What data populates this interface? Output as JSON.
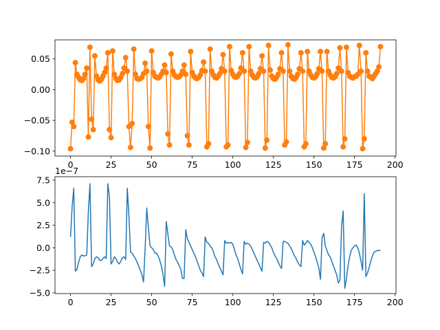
{
  "chart_data": [
    {
      "type": "line",
      "markers": true,
      "x": [
        0,
        1,
        2,
        3,
        4,
        5,
        6,
        7,
        8,
        9,
        10,
        11,
        12,
        13,
        14,
        15,
        16,
        17,
        18,
        19,
        20,
        21,
        22,
        23,
        24,
        25,
        26,
        27,
        28,
        29,
        30,
        31,
        32,
        33,
        34,
        35,
        36,
        37,
        38,
        39,
        40,
        41,
        42,
        43,
        44,
        45,
        46,
        47,
        48,
        49,
        50,
        51,
        52,
        53,
        54,
        55,
        56,
        57,
        58,
        59,
        60,
        61,
        62,
        63,
        64,
        65,
        66,
        67,
        68,
        69,
        70,
        71,
        72,
        73,
        74,
        75,
        76,
        77,
        78,
        79,
        80,
        81,
        82,
        83,
        84,
        85,
        86,
        87,
        88,
        89,
        90,
        91,
        92,
        93,
        94,
        95,
        96,
        97,
        98,
        99,
        100,
        101,
        102,
        103,
        104,
        105,
        106,
        107,
        108,
        109,
        110,
        111,
        112,
        113,
        114,
        115,
        116,
        117,
        118,
        119,
        120,
        121,
        122,
        123,
        124,
        125,
        126,
        127,
        128,
        129,
        130,
        131,
        132,
        133,
        134,
        135,
        136,
        137,
        138,
        139,
        140,
        141,
        142,
        143,
        144,
        145,
        146,
        147,
        148,
        149,
        150,
        151,
        152,
        153,
        154,
        155,
        156,
        157,
        158,
        159,
        160,
        161,
        162,
        163,
        164,
        165,
        166,
        167,
        168,
        169,
        170,
        171,
        172,
        173,
        174,
        175,
        176,
        177,
        178,
        179,
        180,
        181,
        182,
        183,
        184,
        185,
        186,
        187,
        188,
        189,
        190,
        191
      ],
      "series": [
        {
          "color": "#ff7f0e",
          "values": [
            -0.096,
            -0.053,
            -0.06,
            0.044,
            0.025,
            0.02,
            0.016,
            0.015,
            0.018,
            0.025,
            0.035,
            -0.077,
            0.069,
            -0.048,
            -0.065,
            0.055,
            0.022,
            0.016,
            0.014,
            0.017,
            0.022,
            0.028,
            0.035,
            0.06,
            -0.065,
            -0.078,
            0.063,
            0.025,
            0.018,
            0.015,
            0.016,
            0.02,
            0.026,
            0.035,
            0.052,
            0.03,
            -0.06,
            -0.094,
            -0.055,
            0.066,
            0.025,
            0.018,
            0.017,
            0.018,
            0.02,
            0.026,
            0.043,
            0.03,
            -0.06,
            -0.095,
            0.063,
            0.028,
            0.022,
            0.02,
            0.019,
            0.021,
            0.025,
            0.03,
            0.04,
            0.028,
            -0.072,
            -0.09,
            0.058,
            0.03,
            0.024,
            0.021,
            0.02,
            0.021,
            0.024,
            0.03,
            0.04,
            0.025,
            -0.075,
            -0.09,
            0.062,
            0.028,
            0.022,
            0.019,
            0.018,
            0.02,
            0.024,
            0.031,
            0.045,
            0.03,
            -0.093,
            -0.088,
            0.066,
            0.03,
            0.024,
            0.02,
            0.019,
            0.022,
            0.026,
            0.034,
            0.057,
            0.03,
            -0.093,
            -0.09,
            0.07,
            0.031,
            0.025,
            0.021,
            0.02,
            0.022,
            0.026,
            0.035,
            0.06,
            0.03,
            -0.094,
            -0.086,
            0.07,
            0.03,
            0.024,
            0.02,
            0.019,
            0.021,
            0.026,
            0.034,
            0.055,
            0.03,
            -0.095,
            -0.082,
            0.072,
            0.032,
            0.022,
            0.018,
            0.017,
            0.02,
            0.025,
            0.034,
            0.06,
            0.03,
            -0.09,
            -0.085,
            0.073,
            0.03,
            0.022,
            0.018,
            0.017,
            0.02,
            0.025,
            0.034,
            0.06,
            0.03,
            -0.093,
            -0.088,
            0.062,
            0.03,
            0.024,
            0.02,
            0.019,
            0.021,
            0.026,
            0.034,
            0.062,
            0.03,
            -0.095,
            -0.088,
            0.062,
            0.03,
            0.024,
            0.02,
            0.019,
            0.021,
            0.026,
            0.035,
            0.068,
            0.03,
            -0.093,
            -0.08,
            0.069,
            0.028,
            0.022,
            0.02,
            0.019,
            0.021,
            0.022,
            0.025,
            0.072,
            0.03,
            -0.096,
            -0.08,
            0.06,
            0.03,
            0.022,
            0.02,
            0.018,
            0.022,
            0.026,
            0.03,
            0.037,
            0.07
          ]
        }
      ],
      "xlim": [
        -9.55,
        200.55
      ],
      "xticks": [
        0,
        25,
        50,
        75,
        100,
        125,
        150,
        175,
        200
      ],
      "ylim": [
        -0.108,
        0.081
      ],
      "yticks": [
        {
          "value": -0.1,
          "label": "−0.10"
        },
        {
          "value": -0.05,
          "label": "−0.05"
        },
        {
          "value": 0,
          "label": "0.00"
        },
        {
          "value": 0.05,
          "label": "0.05"
        }
      ]
    },
    {
      "type": "line",
      "markers": false,
      "offset_text": "1e−7",
      "x": [
        0,
        1,
        2,
        3,
        4,
        5,
        6,
        7,
        8,
        9,
        10,
        11,
        12,
        13,
        14,
        15,
        16,
        17,
        18,
        19,
        20,
        21,
        22,
        23,
        24,
        25,
        26,
        27,
        28,
        29,
        30,
        31,
        32,
        33,
        34,
        35,
        36,
        37,
        38,
        39,
        40,
        41,
        42,
        43,
        44,
        45,
        46,
        47,
        48,
        49,
        50,
        51,
        52,
        53,
        54,
        55,
        56,
        57,
        58,
        59,
        60,
        61,
        62,
        63,
        64,
        65,
        66,
        67,
        68,
        69,
        70,
        71,
        72,
        73,
        74,
        75,
        76,
        77,
        78,
        79,
        80,
        81,
        82,
        83,
        84,
        85,
        86,
        87,
        88,
        89,
        90,
        91,
        92,
        93,
        94,
        95,
        96,
        97,
        98,
        99,
        100,
        101,
        102,
        103,
        104,
        105,
        106,
        107,
        108,
        109,
        110,
        111,
        112,
        113,
        114,
        115,
        116,
        117,
        118,
        119,
        120,
        121,
        122,
        123,
        124,
        125,
        126,
        127,
        128,
        129,
        130,
        131,
        132,
        133,
        134,
        135,
        136,
        137,
        138,
        139,
        140,
        141,
        142,
        143,
        144,
        145,
        146,
        147,
        148,
        149,
        150,
        151,
        152,
        153,
        154,
        155,
        156,
        157,
        158,
        159,
        160,
        161,
        162,
        163,
        164,
        165,
        166,
        167,
        168,
        169,
        170,
        171,
        172,
        173,
        174,
        175,
        176,
        177,
        178,
        179,
        180,
        181,
        182,
        183,
        184,
        185,
        186,
        187,
        188,
        189,
        190,
        191
      ],
      "series": [
        {
          "color": "#1f77b4",
          "values": [
            1.2,
            4.5,
            6.6,
            -2.6,
            -2.4,
            -1.6,
            -1.0,
            -0.8,
            -0.9,
            -0.9,
            -0.8,
            4.0,
            7.1,
            -2.1,
            -1.8,
            -1.2,
            -1.0,
            -1.1,
            -1.4,
            -1.4,
            -1.2,
            -1.0,
            -1.2,
            7.1,
            5.6,
            -1.8,
            -1.5,
            -1.0,
            -1.2,
            -1.6,
            -1.8,
            -1.5,
            -1.1,
            -1.0,
            -1.3,
            6.6,
            3.5,
            -0.5,
            -0.6,
            -0.9,
            -1.2,
            -1.6,
            -2.0,
            -2.5,
            -3.0,
            -3.8,
            0.0,
            4.4,
            2.2,
            0.2,
            0.0,
            -0.2,
            -0.6,
            -0.6,
            -0.9,
            -1.4,
            -2.0,
            -3.0,
            -4.3,
            2.9,
            1.5,
            0.2,
            0.1,
            -0.2,
            -0.8,
            -1.3,
            -1.6,
            -2.0,
            -2.4,
            -3.4,
            -3.4,
            2.0,
            1.0,
            0.6,
            0.2,
            -0.2,
            -0.6,
            -1.0,
            -1.5,
            -2.0,
            -2.5,
            -2.8,
            -3.2,
            1.2,
            0.6,
            0.5,
            0.2,
            0.0,
            -0.4,
            -1.0,
            -1.3,
            -1.8,
            -2.2,
            -2.6,
            -3.0,
            0.8,
            0.5,
            0.6,
            0.5,
            0.6,
            0.4,
            -0.2,
            -0.8,
            -1.2,
            -1.8,
            -2.4,
            -2.9,
            0.7,
            0.4,
            0.5,
            0.4,
            0.2,
            -0.2,
            -0.6,
            -1.0,
            -1.4,
            -1.8,
            -2.2,
            -2.6,
            0.6,
            0.5,
            0.7,
            0.6,
            0.3,
            0.0,
            -0.5,
            -0.9,
            -1.2,
            -1.6,
            -2.0,
            -2.3,
            0.7,
            0.7,
            0.6,
            0.5,
            0.2,
            -0.1,
            -0.5,
            -0.9,
            -1.2,
            -1.6,
            -1.9,
            -2.1,
            0.8,
            0.3,
            0.5,
            0.8,
            0.6,
            0.4,
            0.0,
            -0.5,
            -1.0,
            -1.6,
            -2.2,
            -3.5,
            1.1,
            1.6,
            0.2,
            -0.3,
            -0.8,
            -1.0,
            -1.5,
            -2.0,
            -2.5,
            -3.0,
            -3.9,
            -3.6,
            2.3,
            4.1,
            -4.5,
            -3.4,
            -2.0,
            -1.0,
            -0.3,
            0.0,
            0.2,
            0.3,
            0.0,
            -0.6,
            -1.5,
            -2.5,
            6.0,
            -3.2,
            -2.8,
            -2.2,
            -1.5,
            -0.9,
            -0.5,
            -0.4,
            -0.3,
            -0.3,
            -0.3
          ]
        }
      ],
      "xlim": [
        -9.55,
        200.55
      ],
      "xticks": [
        0,
        25,
        50,
        75,
        100,
        125,
        150,
        175,
        200
      ],
      "ylim": [
        -5.08,
        7.88
      ],
      "yticks": [
        {
          "value": -5,
          "label": "−5.0"
        },
        {
          "value": -2.5,
          "label": "−2.5"
        },
        {
          "value": 0,
          "label": "0.0"
        },
        {
          "value": 2.5,
          "label": "2.5"
        },
        {
          "value": 5,
          "label": "5.0"
        },
        {
          "value": 7.5,
          "label": "7.5"
        }
      ]
    }
  ]
}
